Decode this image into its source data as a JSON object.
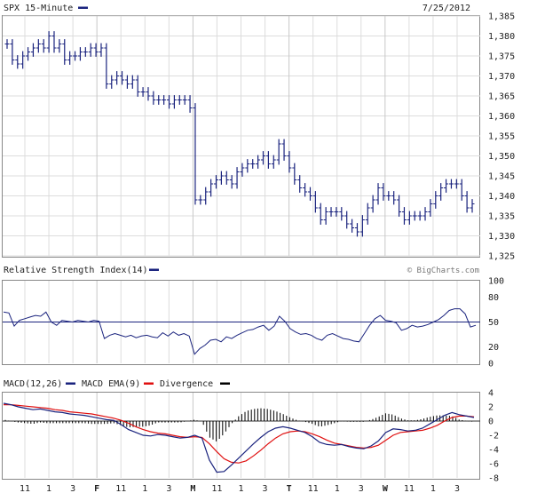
{
  "header": {
    "title": "SPX 15-Minute",
    "date": "7/25/2012",
    "watermark": "© BigCharts.com"
  },
  "colors": {
    "price": "#1a237e",
    "macd": "#1a237e",
    "macd_ema": "#e01010",
    "divergence": "#000000",
    "grid": "#dcdcdc",
    "axis": "#888888",
    "text": "#222222"
  },
  "chart_data": [
    {
      "type": "ohlc",
      "title": "SPX 15-Minute",
      "ylim": [
        1325,
        1385
      ],
      "yticks": [
        "1,325",
        "1,330",
        "1,335",
        "1,340",
        "1,345",
        "1,350",
        "1,355",
        "1,360",
        "1,365",
        "1,370",
        "1,375",
        "1,380",
        "1,385"
      ],
      "close": [
        1378,
        1374,
        1373,
        1375,
        1376,
        1377,
        1378,
        1377,
        1380,
        1377,
        1378,
        1374,
        1375,
        1375,
        1376,
        1376,
        1377,
        1376,
        1377,
        1368,
        1369,
        1370,
        1369,
        1368,
        1369,
        1366,
        1366,
        1365,
        1364,
        1364,
        1364,
        1363,
        1364,
        1364,
        1364,
        1362,
        1339,
        1339,
        1341,
        1343,
        1344,
        1345,
        1344,
        1343,
        1346,
        1347,
        1348,
        1348,
        1349,
        1350,
        1348,
        1349,
        1353,
        1350,
        1347,
        1344,
        1342,
        1341,
        1340,
        1337,
        1334,
        1336,
        1336,
        1336,
        1335,
        1333,
        1332,
        1331,
        1334,
        1337,
        1339,
        1342,
        1340,
        1340,
        1339,
        1336,
        1334,
        1335,
        1335,
        1335,
        1336,
        1338,
        1340,
        1342,
        1343,
        1343,
        1343,
        1340,
        1337,
        1338
      ]
    },
    {
      "type": "line",
      "title": "Relative Strength Index(14)",
      "ylim": [
        0,
        100
      ],
      "yticks": [
        "0",
        "20",
        "50",
        "80",
        "100"
      ],
      "reference_level": 50,
      "values": [
        62,
        61,
        45,
        52,
        54,
        56,
        58,
        57,
        62,
        50,
        46,
        52,
        51,
        50,
        52,
        51,
        50,
        52,
        51,
        30,
        34,
        36,
        34,
        32,
        34,
        31,
        33,
        34,
        32,
        31,
        37,
        33,
        38,
        34,
        36,
        33,
        11,
        18,
        22,
        28,
        29,
        26,
        32,
        30,
        34,
        37,
        40,
        41,
        44,
        46,
        40,
        45,
        57,
        51,
        42,
        38,
        35,
        36,
        34,
        30,
        28,
        34,
        36,
        33,
        30,
        29,
        27,
        26,
        36,
        46,
        54,
        58,
        52,
        51,
        49,
        40,
        42,
        46,
        44,
        45,
        47,
        50,
        53,
        58,
        64,
        66,
        66,
        60,
        44,
        46
      ]
    },
    {
      "type": "line",
      "title": "MACD",
      "ylim": [
        -8,
        4
      ],
      "yticks": [
        "-8",
        "-6",
        "-4",
        "-2",
        "0",
        "2",
        "4"
      ],
      "xticks": [
        "11",
        "1",
        "3",
        "F",
        "11",
        "1",
        "3",
        "M",
        "11",
        "1",
        "3",
        "T",
        "11",
        "1",
        "3",
        "W",
        "11",
        "1",
        "3"
      ],
      "series": [
        {
          "name": "MACD(12,26)",
          "values": [
            2.5,
            2.3,
            2.0,
            1.8,
            1.6,
            1.7,
            1.5,
            1.3,
            1.2,
            1.0,
            0.9,
            0.8,
            0.6,
            0.4,
            0.2,
            0.1,
            -0.5,
            -1.2,
            -1.6,
            -2.0,
            -2.1,
            -1.9,
            -2.0,
            -2.2,
            -2.4,
            -2.3,
            -2.0,
            -2.4,
            -5.5,
            -7.2,
            -7.1,
            -6.2,
            -5.2,
            -4.2,
            -3.2,
            -2.3,
            -1.5,
            -1.0,
            -0.8,
            -1.0,
            -1.3,
            -1.6,
            -2.2,
            -3.0,
            -3.3,
            -3.4,
            -3.3,
            -3.6,
            -3.8,
            -3.9,
            -3.5,
            -2.8,
            -1.6,
            -1.1,
            -1.2,
            -1.4,
            -1.3,
            -1.0,
            -0.4,
            0.2,
            0.8,
            1.2,
            0.9,
            0.7,
            0.5
          ]
        },
        {
          "name": "MACD EMA(9)",
          "values": [
            2.3,
            2.3,
            2.2,
            2.1,
            2.0,
            1.9,
            1.8,
            1.6,
            1.5,
            1.3,
            1.2,
            1.1,
            1.0,
            0.8,
            0.6,
            0.4,
            0.1,
            -0.3,
            -0.8,
            -1.2,
            -1.5,
            -1.7,
            -1.8,
            -2.0,
            -2.2,
            -2.3,
            -2.2,
            -2.3,
            -3.2,
            -4.3,
            -5.3,
            -5.8,
            -5.9,
            -5.6,
            -4.9,
            -4.1,
            -3.2,
            -2.4,
            -1.8,
            -1.5,
            -1.4,
            -1.5,
            -1.8,
            -2.2,
            -2.7,
            -3.1,
            -3.3,
            -3.5,
            -3.7,
            -3.8,
            -3.7,
            -3.4,
            -2.7,
            -2.0,
            -1.6,
            -1.5,
            -1.4,
            -1.3,
            -1.0,
            -0.6,
            0.0,
            0.5,
            0.7,
            0.7,
            0.6
          ]
        },
        {
          "name": "Divergence",
          "values": [
            0.2,
            0.0,
            -0.2,
            -0.3,
            -0.4,
            -0.2,
            -0.3,
            -0.3,
            -0.3,
            -0.3,
            -0.3,
            -0.3,
            -0.4,
            -0.4,
            -0.4,
            -0.3,
            -0.6,
            -0.9,
            -0.8,
            -0.8,
            -0.6,
            -0.2,
            -0.2,
            -0.2,
            -0.2,
            0.0,
            0.2,
            -0.1,
            -2.3,
            -2.9,
            -1.8,
            -0.4,
            0.7,
            1.4,
            1.7,
            1.8,
            1.7,
            1.4,
            1.0,
            0.5,
            0.1,
            -0.1,
            -0.4,
            -0.8,
            -0.6,
            -0.3,
            0.0,
            -0.1,
            -0.1,
            -0.1,
            0.2,
            0.6,
            1.1,
            0.9,
            0.4,
            0.1,
            0.1,
            0.3,
            0.6,
            0.8,
            0.8,
            0.7,
            0.2,
            0.0,
            -0.1
          ]
        }
      ]
    }
  ]
}
